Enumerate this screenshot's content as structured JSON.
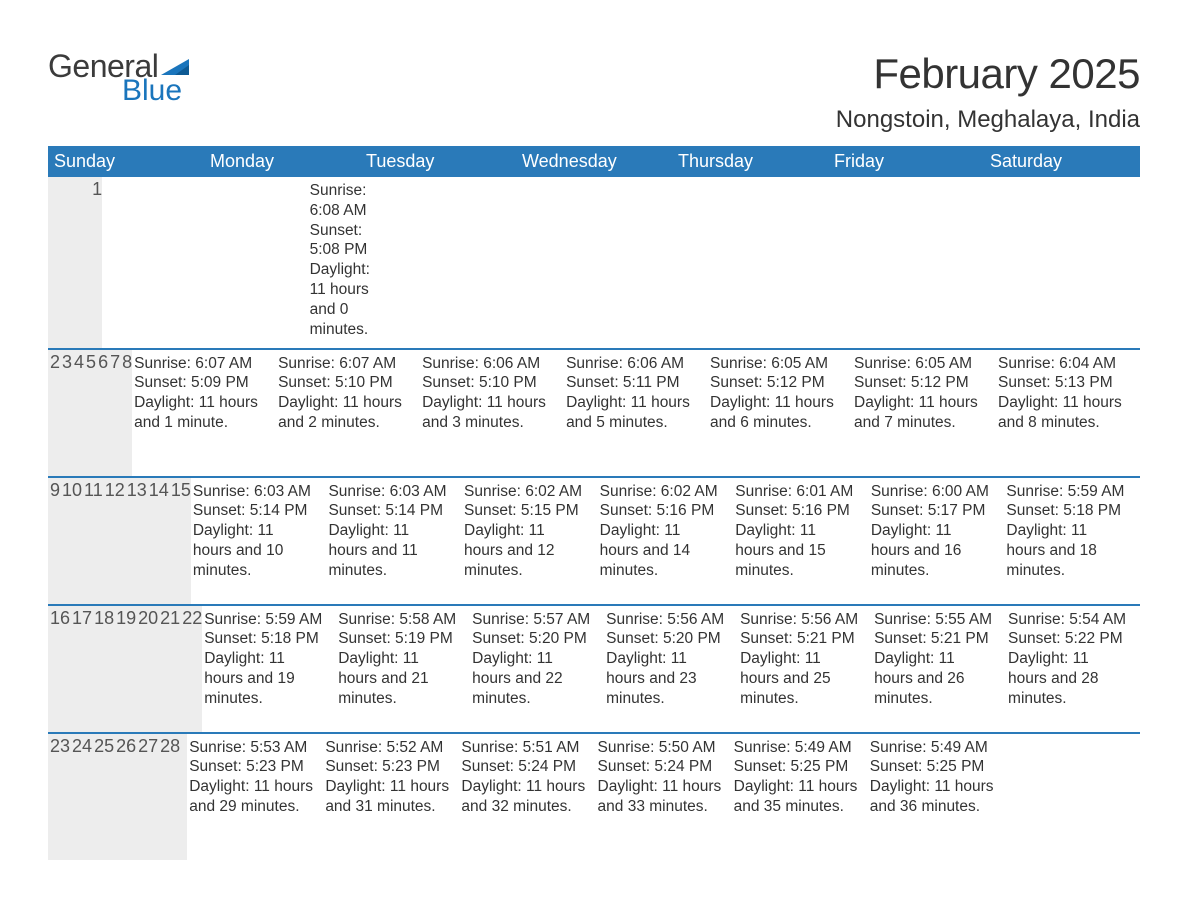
{
  "colors": {
    "header_bg": "#2a7ab9",
    "header_text": "#ffffff",
    "band_bg": "#ededed",
    "border": "#2a7ab9",
    "body_text": "#333333",
    "logo_gray": "#3b3b3b",
    "logo_blue": "#1a75bc",
    "page_bg": "#ffffff"
  },
  "fonts": {
    "family": "Arial, Helvetica, sans-serif",
    "month_title_size_pt": 32,
    "location_size_pt": 18,
    "weekday_size_pt": 14,
    "daynum_size_pt": 14,
    "body_size_pt": 12
  },
  "logo": {
    "word1": "General",
    "word2": "Blue"
  },
  "title": "February 2025",
  "location": "Nongstoin, Meghalaya, India",
  "weekdays": [
    "Sunday",
    "Monday",
    "Tuesday",
    "Wednesday",
    "Thursday",
    "Friday",
    "Saturday"
  ],
  "layout": {
    "columns": 7,
    "rows": 5,
    "first_day_column_index": 6,
    "days_in_month": 28
  },
  "days": {
    "1": {
      "sunrise": "6:08 AM",
      "sunset": "5:08 PM",
      "daylight": "11 hours and 0 minutes."
    },
    "2": {
      "sunrise": "6:07 AM",
      "sunset": "5:09 PM",
      "daylight": "11 hours and 1 minute."
    },
    "3": {
      "sunrise": "6:07 AM",
      "sunset": "5:10 PM",
      "daylight": "11 hours and 2 minutes."
    },
    "4": {
      "sunrise": "6:06 AM",
      "sunset": "5:10 PM",
      "daylight": "11 hours and 3 minutes."
    },
    "5": {
      "sunrise": "6:06 AM",
      "sunset": "5:11 PM",
      "daylight": "11 hours and 5 minutes."
    },
    "6": {
      "sunrise": "6:05 AM",
      "sunset": "5:12 PM",
      "daylight": "11 hours and 6 minutes."
    },
    "7": {
      "sunrise": "6:05 AM",
      "sunset": "5:12 PM",
      "daylight": "11 hours and 7 minutes."
    },
    "8": {
      "sunrise": "6:04 AM",
      "sunset": "5:13 PM",
      "daylight": "11 hours and 8 minutes."
    },
    "9": {
      "sunrise": "6:03 AM",
      "sunset": "5:14 PM",
      "daylight": "11 hours and 10 minutes."
    },
    "10": {
      "sunrise": "6:03 AM",
      "sunset": "5:14 PM",
      "daylight": "11 hours and 11 minutes."
    },
    "11": {
      "sunrise": "6:02 AM",
      "sunset": "5:15 PM",
      "daylight": "11 hours and 12 minutes."
    },
    "12": {
      "sunrise": "6:02 AM",
      "sunset": "5:16 PM",
      "daylight": "11 hours and 14 minutes."
    },
    "13": {
      "sunrise": "6:01 AM",
      "sunset": "5:16 PM",
      "daylight": "11 hours and 15 minutes."
    },
    "14": {
      "sunrise": "6:00 AM",
      "sunset": "5:17 PM",
      "daylight": "11 hours and 16 minutes."
    },
    "15": {
      "sunrise": "5:59 AM",
      "sunset": "5:18 PM",
      "daylight": "11 hours and 18 minutes."
    },
    "16": {
      "sunrise": "5:59 AM",
      "sunset": "5:18 PM",
      "daylight": "11 hours and 19 minutes."
    },
    "17": {
      "sunrise": "5:58 AM",
      "sunset": "5:19 PM",
      "daylight": "11 hours and 21 minutes."
    },
    "18": {
      "sunrise": "5:57 AM",
      "sunset": "5:20 PM",
      "daylight": "11 hours and 22 minutes."
    },
    "19": {
      "sunrise": "5:56 AM",
      "sunset": "5:20 PM",
      "daylight": "11 hours and 23 minutes."
    },
    "20": {
      "sunrise": "5:56 AM",
      "sunset": "5:21 PM",
      "daylight": "11 hours and 25 minutes."
    },
    "21": {
      "sunrise": "5:55 AM",
      "sunset": "5:21 PM",
      "daylight": "11 hours and 26 minutes."
    },
    "22": {
      "sunrise": "5:54 AM",
      "sunset": "5:22 PM",
      "daylight": "11 hours and 28 minutes."
    },
    "23": {
      "sunrise": "5:53 AM",
      "sunset": "5:23 PM",
      "daylight": "11 hours and 29 minutes."
    },
    "24": {
      "sunrise": "5:52 AM",
      "sunset": "5:23 PM",
      "daylight": "11 hours and 31 minutes."
    },
    "25": {
      "sunrise": "5:51 AM",
      "sunset": "5:24 PM",
      "daylight": "11 hours and 32 minutes."
    },
    "26": {
      "sunrise": "5:50 AM",
      "sunset": "5:24 PM",
      "daylight": "11 hours and 33 minutes."
    },
    "27": {
      "sunrise": "5:49 AM",
      "sunset": "5:25 PM",
      "daylight": "11 hours and 35 minutes."
    },
    "28": {
      "sunrise": "5:49 AM",
      "sunset": "5:25 PM",
      "daylight": "11 hours and 36 minutes."
    }
  },
  "labels": {
    "sunrise": "Sunrise:",
    "sunset": "Sunset:",
    "daylight": "Daylight:"
  }
}
